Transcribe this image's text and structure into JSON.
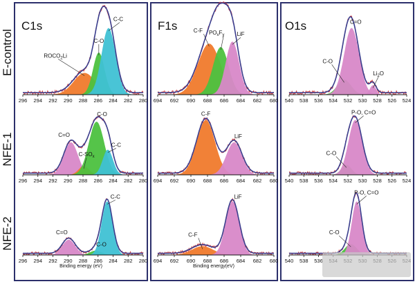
{
  "colors": {
    "orange": "#f07a2c",
    "green": "#4cc13f",
    "cyan": "#3fc1d4",
    "pink": "#d888c8",
    "envelope": "#3a3f8f",
    "raw": "#d23a3a",
    "frame": "#2b2f6b"
  },
  "columns": [
    {
      "title": "C1s",
      "xlim": [
        296,
        280
      ],
      "ticks": [
        296,
        294,
        292,
        290,
        288,
        286,
        284,
        282,
        280
      ],
      "xlabel": "Binding energy (eV)"
    },
    {
      "title": "F1s",
      "xlim": [
        694,
        680
      ],
      "ticks": [
        694,
        692,
        690,
        688,
        686,
        684,
        682,
        680
      ],
      "xlabel": "Binding energy(eV)"
    },
    {
      "title": "O1s",
      "xlim": [
        540,
        524
      ],
      "ticks": [
        540,
        538,
        536,
        534,
        532,
        530,
        528,
        526,
        524
      ],
      "xlabel": ""
    }
  ],
  "rows": [
    {
      "label": "E-control"
    },
    {
      "label": "NFE-1"
    },
    {
      "label": "NFE-2"
    }
  ],
  "chart_data": [
    {
      "type": "area",
      "column": "C1s",
      "row": "E-control",
      "xlim": [
        296,
        280
      ],
      "peaks": [
        {
          "label": "ROCO₂Li",
          "center": 287.8,
          "height": 0.32,
          "fwhm": 3.4,
          "color": "orange",
          "label_text": "ROCO",
          "label_sub": "2",
          "label_tail": "Li"
        },
        {
          "label": "C-O",
          "center": 285.9,
          "height": 0.62,
          "fwhm": 1.8,
          "color": "green",
          "label_text": "C-O"
        },
        {
          "label": "C-C",
          "center": 284.6,
          "height": 0.98,
          "fwhm": 2.2,
          "color": "cyan",
          "label_text": "C-C"
        }
      ]
    },
    {
      "type": "area",
      "column": "C1s",
      "row": "NFE-1",
      "xlim": [
        296,
        280
      ],
      "peaks": [
        {
          "label": "C=O",
          "center": 289.6,
          "height": 0.58,
          "fwhm": 2.2,
          "color": "pink",
          "label_text": "C=O"
        },
        {
          "label": "C-SOx",
          "center": 287.9,
          "height": 0.16,
          "fwhm": 1.6,
          "color": "orange",
          "label_text": "C-SO",
          "label_sub": "x"
        },
        {
          "label": "C-O",
          "center": 286.2,
          "height": 0.95,
          "fwhm": 2.4,
          "color": "green",
          "label_text": "C-O"
        },
        {
          "label": "C-C",
          "center": 284.7,
          "height": 0.45,
          "fwhm": 1.6,
          "color": "cyan",
          "label_text": "C-C"
        }
      ]
    },
    {
      "type": "area",
      "column": "C1s",
      "row": "NFE-2",
      "xlim": [
        296,
        280
      ],
      "peaks": [
        {
          "label": "C=O",
          "center": 289.9,
          "height": 0.28,
          "fwhm": 2.0,
          "color": "pink",
          "label_text": "C=O"
        },
        {
          "label": "C-O",
          "center": 286.3,
          "height": 0.08,
          "fwhm": 1.8,
          "color": "green",
          "label_text": "C-O"
        },
        {
          "label": "C-C",
          "center": 284.8,
          "height": 0.98,
          "fwhm": 1.7,
          "color": "cyan",
          "label_text": "C-C"
        }
      ]
    },
    {
      "type": "area",
      "column": "F1s",
      "row": "E-control",
      "xlim": [
        694,
        680
      ],
      "peaks": [
        {
          "label": "C-F",
          "center": 687.8,
          "height": 0.75,
          "fwhm": 3.2,
          "color": "orange",
          "label_text": "C-F"
        },
        {
          "label": "POxFy",
          "center": 686.4,
          "height": 0.7,
          "fwhm": 2.2,
          "color": "green",
          "label_text": "PO",
          "label_sub": "x",
          "label_tail": "F",
          "label_sub2": "y"
        },
        {
          "label": "LiF",
          "center": 685.0,
          "height": 0.78,
          "fwhm": 1.9,
          "color": "pink",
          "label_text": "LiF"
        }
      ]
    },
    {
      "type": "area",
      "column": "F1s",
      "row": "NFE-1",
      "xlim": [
        694,
        680
      ],
      "peaks": [
        {
          "label": "C-F",
          "center": 688.2,
          "height": 0.98,
          "fwhm": 2.6,
          "color": "orange",
          "label_text": "C-F"
        },
        {
          "label": "LiF",
          "center": 684.8,
          "height": 0.58,
          "fwhm": 2.2,
          "color": "pink",
          "label_text": "LiF"
        }
      ]
    },
    {
      "type": "area",
      "column": "F1s",
      "row": "NFE-2",
      "xlim": [
        694,
        680
      ],
      "peaks": [
        {
          "label": "C-F",
          "center": 688.6,
          "height": 0.16,
          "fwhm": 3.0,
          "color": "orange",
          "label_text": "C-F"
        },
        {
          "label": "LiF",
          "center": 685.0,
          "height": 0.98,
          "fwhm": 1.9,
          "color": "pink",
          "label_text": "LiF"
        }
      ]
    },
    {
      "type": "area",
      "column": "O1s",
      "row": "E-control",
      "xlim": [
        540,
        524
      ],
      "peaks": [
        {
          "label": "C-O",
          "center": 532.5,
          "height": 0.22,
          "fwhm": 2.2,
          "color": "green",
          "label_text": "C-O"
        },
        {
          "label": "C=O",
          "center": 531.5,
          "height": 0.98,
          "fwhm": 2.4,
          "color": "pink",
          "label_text": "C=O"
        },
        {
          "label": "Li₂O",
          "center": 528.6,
          "height": 0.14,
          "fwhm": 1.0,
          "color": "pink",
          "label_text": "Li",
          "label_sub": "2",
          "label_tail": "O"
        }
      ]
    },
    {
      "type": "area",
      "column": "O1s",
      "row": "NFE-1",
      "xlim": [
        540,
        524
      ],
      "peaks": [
        {
          "label": "C-O",
          "center": 532.2,
          "height": 0.18,
          "fwhm": 1.6,
          "color": "green",
          "label_text": "C-O"
        },
        {
          "label": "P-O, C=O",
          "center": 531.0,
          "height": 0.98,
          "fwhm": 2.2,
          "color": "pink",
          "label_text": "P-O, C=O"
        }
      ]
    },
    {
      "type": "area",
      "column": "O1s",
      "row": "NFE-2",
      "xlim": [
        540,
        524
      ],
      "peaks": [
        {
          "label": "C-O",
          "center": 531.6,
          "height": 0.2,
          "fwhm": 1.9,
          "color": "green",
          "label_text": "C-O"
        },
        {
          "label": "P-O, C=O",
          "center": 530.8,
          "height": 0.98,
          "fwhm": 1.6,
          "color": "pink",
          "label_text": "P-O, C=O"
        }
      ]
    }
  ]
}
